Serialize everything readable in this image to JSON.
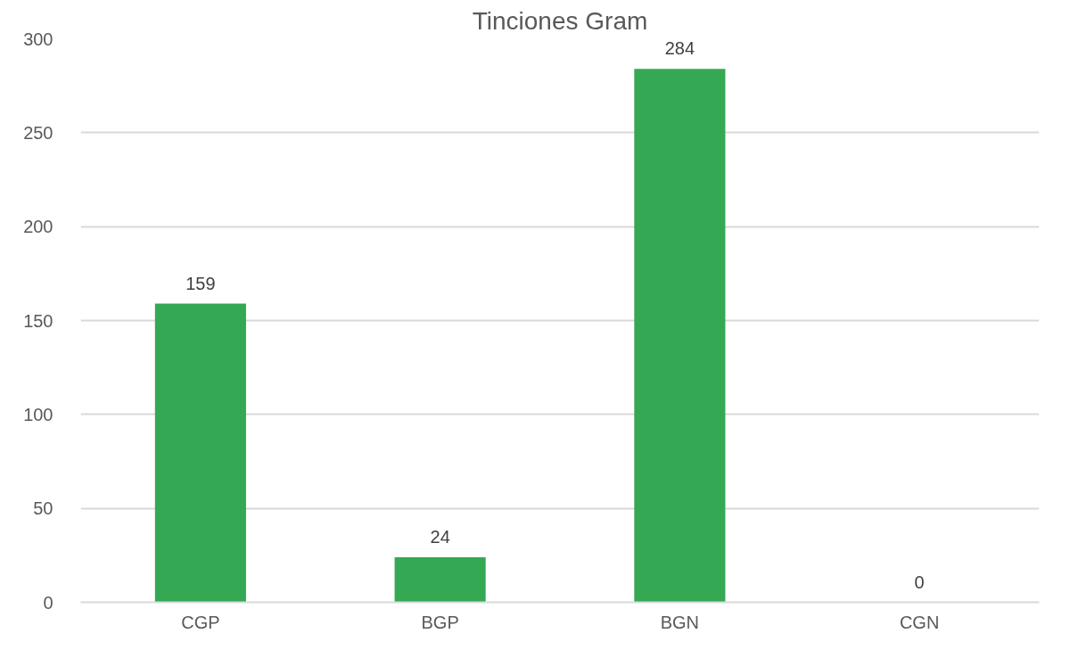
{
  "chart_data": {
    "type": "bar",
    "title": "Tinciones Gram",
    "categories": [
      "CGP",
      "BGP",
      "BGN",
      "CGN"
    ],
    "values": [
      159,
      24,
      284,
      0
    ],
    "color": "#34a853",
    "ylim": [
      0,
      300
    ],
    "yticks": [
      0,
      50,
      100,
      150,
      200,
      250,
      300
    ],
    "grid": "y",
    "data_labels": true
  }
}
